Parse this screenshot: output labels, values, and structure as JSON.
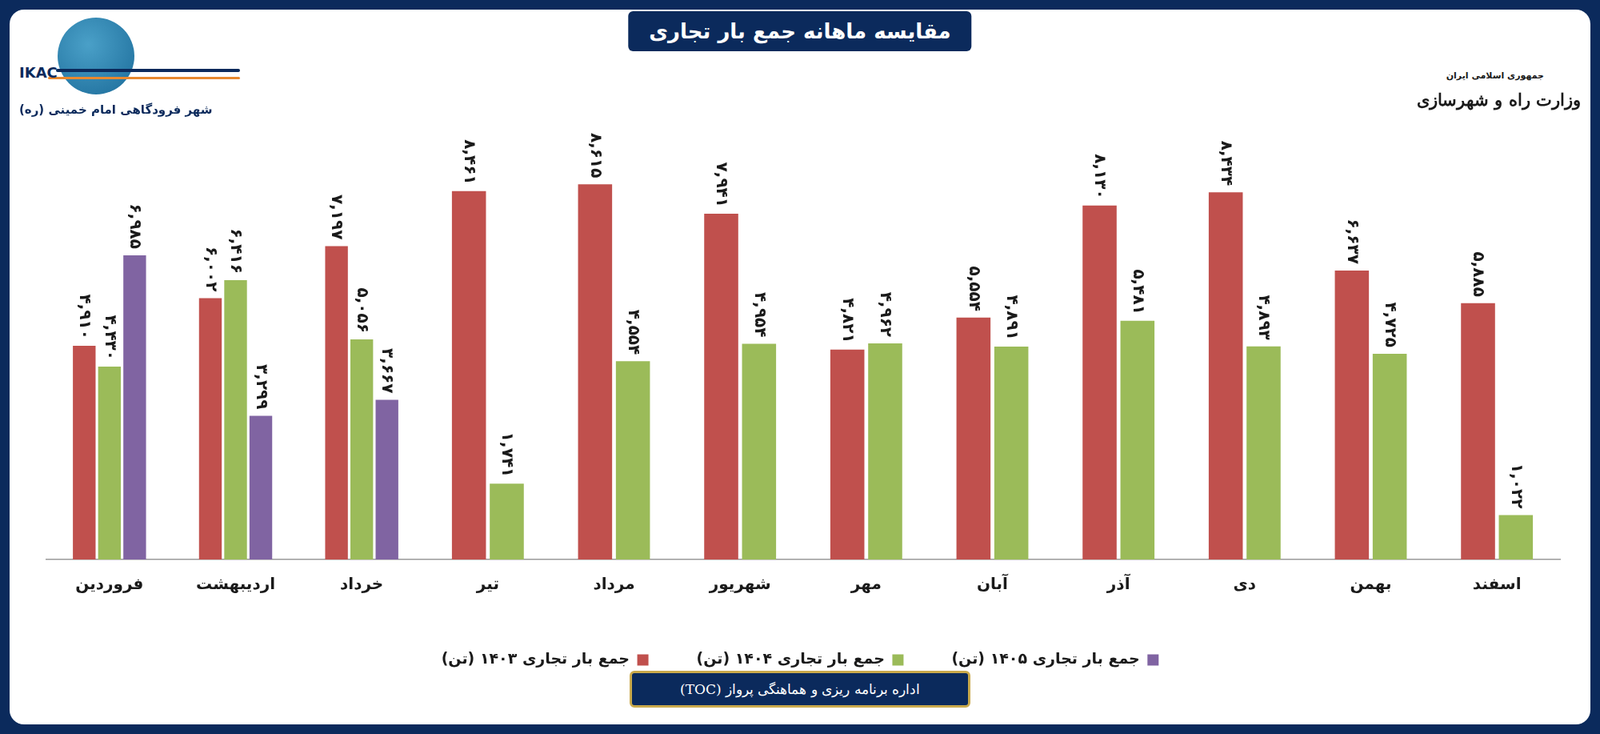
{
  "chart_data": {
    "type": "bar",
    "title": "مقایسه ماهانه جمع بار تجاری",
    "annotations": [
      "IKAC",
      "شهر فرودگاهی امام خمینی (ره)",
      "جمهوری اسلامی ایران",
      "وزارت راه و شهرسازی",
      "اداره برنامه ریزی و هماهنگی پرواز (TOC)"
    ],
    "categories": [
      "فروردین",
      "اردیبهشت",
      "خرداد",
      "تیر",
      "مرداد",
      "شهریور",
      "مهر",
      "آبان",
      "آذر",
      "دی",
      "بهمن",
      "اسفند"
    ],
    "series": [
      {
        "name": "جمع بار تجاری ۱۴۰۳ (تن)",
        "color": "#c0504d",
        "values": [
          4910,
          6002,
          7197,
          8461,
          8615,
          7941,
          4821,
          5554,
          8130,
          8434,
          6637,
          5885
        ],
        "value_labels": [
          "۴,۹۱۰",
          "۶,۰۰۲",
          "۷,۱۹۷",
          "۸,۴۶۱",
          "۸,۶۱۵",
          "۷,۹۴۱",
          "۴,۸۲۱",
          "۵,۵۵۴",
          "۸,۱۳۰",
          "۸,۴۳۴",
          "۶,۶۳۷",
          "۵,۸۸۵"
        ]
      },
      {
        "name": "جمع بار تجاری ۱۴۰۴ (تن)",
        "color": "#9bbb59",
        "values": [
          4430,
          6416,
          5056,
          1741,
          4554,
          4954,
          4962,
          4891,
          5481,
          4893,
          4725,
          1022
        ],
        "value_labels": [
          "۴,۴۳۰",
          "۶,۴۱۶",
          "۵,۰۵۶",
          "۱,۷۴۱",
          "۴,۵۵۴",
          "۴,۹۵۴",
          "۴,۹۶۲",
          "۴,۸۹۱",
          "۵,۴۸۱",
          "۴,۸۹۳",
          "۴,۷۲۵",
          "۱,۰۲۲"
        ]
      },
      {
        "name": "جمع بار تجاری ۱۴۰۵ (تن)",
        "color": "#8064a2",
        "values": [
          6985,
          3299,
          3667,
          null,
          null,
          null,
          null,
          null,
          null,
          null,
          null,
          null
        ],
        "value_labels": [
          "۶,۹۸۵",
          "۳,۲۹۹",
          "۳,۶۶۷",
          null,
          null,
          null,
          null,
          null,
          null,
          null,
          null,
          null
        ]
      }
    ],
    "ylim": [
      0,
      10000
    ],
    "yticks": [],
    "grid": false,
    "legend": "bottom",
    "data_labels": true,
    "tick_labels": "x"
  }
}
